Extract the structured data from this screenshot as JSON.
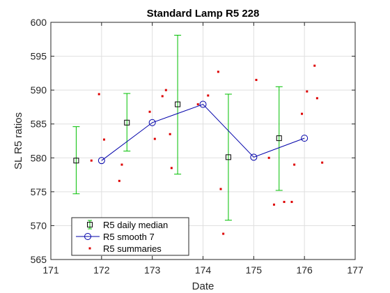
{
  "chart_data": {
    "type": "scatter",
    "title": "Standard Lamp R5   228",
    "xlabel": "Date",
    "ylabel": "SL R5  ratios",
    "xlim": [
      171,
      177
    ],
    "ylim": [
      565,
      600
    ],
    "x_ticks": [
      "171",
      "172",
      "173",
      "174",
      "175",
      "176",
      "177"
    ],
    "y_ticks": [
      "565",
      "570",
      "575",
      "580",
      "585",
      "590",
      "595",
      "600"
    ],
    "grid": true,
    "legend_position": "bottom-left",
    "colors": {
      "median": "#00c000",
      "smooth": "#0000aa",
      "summaries": "#dd0000"
    },
    "series": [
      {
        "name": "R5 daily median",
        "kind": "errorbar",
        "points": [
          {
            "x": 171.5,
            "y": 579.6,
            "low": 574.7,
            "high": 584.6
          },
          {
            "x": 172.5,
            "y": 585.2,
            "low": 581.0,
            "high": 589.5
          },
          {
            "x": 173.5,
            "y": 587.9,
            "low": 577.6,
            "high": 598.1
          },
          {
            "x": 174.5,
            "y": 580.1,
            "low": 570.8,
            "high": 589.4
          },
          {
            "x": 175.5,
            "y": 582.9,
            "low": 575.2,
            "high": 590.5
          }
        ]
      },
      {
        "name": "R5 smooth 7",
        "kind": "line",
        "points": [
          {
            "x": 172.0,
            "y": 579.6
          },
          {
            "x": 173.0,
            "y": 585.2
          },
          {
            "x": 174.0,
            "y": 587.9
          },
          {
            "x": 175.0,
            "y": 580.1
          },
          {
            "x": 176.0,
            "y": 582.9
          }
        ]
      },
      {
        "name": "R5 summaries",
        "kind": "scatter",
        "points": [
          {
            "x": 171.8,
            "y": 579.6
          },
          {
            "x": 171.95,
            "y": 589.4
          },
          {
            "x": 172.05,
            "y": 582.7
          },
          {
            "x": 172.35,
            "y": 576.6
          },
          {
            "x": 172.4,
            "y": 579.0
          },
          {
            "x": 172.95,
            "y": 586.8
          },
          {
            "x": 173.05,
            "y": 582.8
          },
          {
            "x": 173.2,
            "y": 589.1
          },
          {
            "x": 173.27,
            "y": 590.0
          },
          {
            "x": 173.35,
            "y": 583.5
          },
          {
            "x": 173.38,
            "y": 578.5
          },
          {
            "x": 173.9,
            "y": 587.9
          },
          {
            "x": 174.1,
            "y": 589.2
          },
          {
            "x": 174.3,
            "y": 592.7
          },
          {
            "x": 174.35,
            "y": 575.4
          },
          {
            "x": 174.4,
            "y": 568.8
          },
          {
            "x": 175.05,
            "y": 591.5
          },
          {
            "x": 175.3,
            "y": 580.0
          },
          {
            "x": 175.4,
            "y": 573.1
          },
          {
            "x": 175.6,
            "y": 573.5
          },
          {
            "x": 175.75,
            "y": 573.5
          },
          {
            "x": 175.8,
            "y": 579.0
          },
          {
            "x": 175.95,
            "y": 586.5
          },
          {
            "x": 176.05,
            "y": 589.8
          },
          {
            "x": 176.2,
            "y": 593.6
          },
          {
            "x": 176.25,
            "y": 588.8
          },
          {
            "x": 176.35,
            "y": 579.3
          }
        ]
      }
    ]
  }
}
